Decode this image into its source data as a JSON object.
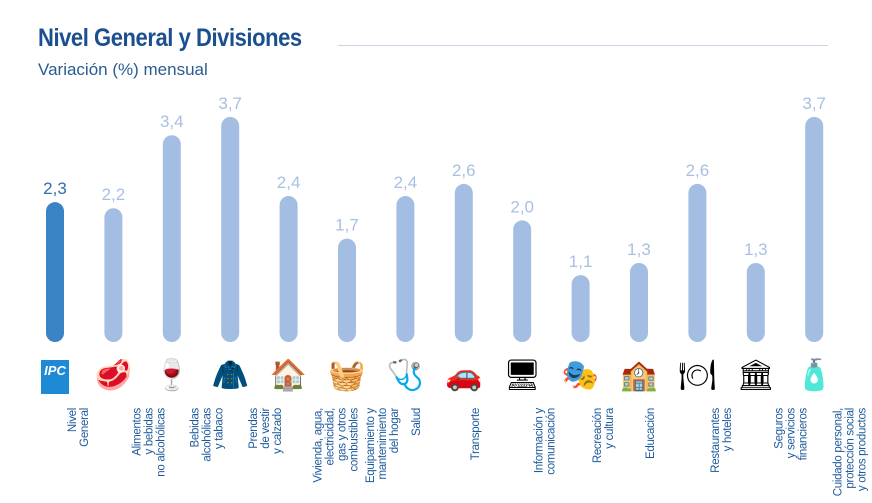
{
  "header": {
    "title": "Nivel General y Divisiones",
    "subtitle": "Variación (%) mensual"
  },
  "colors": {
    "highlight": "#3a83c4",
    "bar": "#a4bee3",
    "highlight_label": "#2f6fae",
    "bar_label": "#a9c0e2"
  },
  "chart_data": {
    "type": "bar",
    "title": "Nivel General y Divisiones",
    "subtitle": "Variación (%) mensual",
    "ylim": [
      0,
      3.7
    ],
    "grid": false,
    "categories": [
      "Nivel\nGeneral",
      "Alimentos\ny bebidas\nno alcohólicas",
      "Bebidas\nalcohólicas\ny tabaco",
      "Prendas\nde vestir\ny calzado",
      "Vivienda, agua,\nelectricidad,\ngas y otros\ncombustibles",
      "Equipamiento y\nmantenimiento\ndel hogar",
      "Salud",
      "Transporte",
      "Información y\ncomunicación",
      "Recreación\ny cultura",
      "Educación",
      "Restaurantes\ny hoteles",
      "Seguros\ny servicios\nfinancieros",
      "Cuidado personal,\nprotección social\ny otros productos"
    ],
    "values": [
      2.3,
      2.2,
      3.4,
      3.7,
      2.4,
      1.7,
      2.4,
      2.6,
      2.0,
      1.1,
      1.3,
      2.6,
      1.3,
      3.7
    ],
    "value_labels": [
      "2,3",
      "2,2",
      "3,4",
      "3,7",
      "2,4",
      "1,7",
      "2,4",
      "2,6",
      "2,0",
      "1,1",
      "1,3",
      "2,6",
      "1,3",
      "3,7"
    ],
    "icons": [
      "ipc-ba-logo-icon",
      "food-icon",
      "bottles-icon",
      "clothing-icon",
      "house-icon",
      "appliances-icon",
      "doctor-icon",
      "transport-icon",
      "computer-icon",
      "theater-masks-icon",
      "school-icon",
      "restaurant-icon",
      "bank-icon",
      "personal-care-icon"
    ],
    "highlight_index": 0
  }
}
